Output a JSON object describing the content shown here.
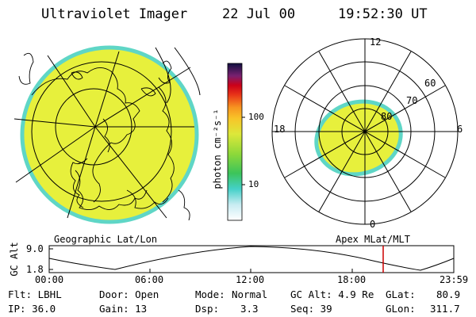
{
  "header": {
    "instrument": "Ultraviolet Imager",
    "date": "22 Jul 00",
    "time": "19:52:30 UT"
  },
  "colors": {
    "auroral_fill": "#e6f23a",
    "auroral_edge": "#55d3c5",
    "line": "#000000",
    "marker": "#cc0000"
  },
  "left_panel": {
    "label": "Geographic Lat/Lon"
  },
  "right_panel": {
    "label": "Apex MLat/MLT",
    "mlt_labels": [
      "12",
      "18",
      "6",
      "0"
    ],
    "mlat_labels": [
      "60",
      "70",
      "80"
    ]
  },
  "colorbar": {
    "unit_label": "photon cm⁻²s⁻¹",
    "ticks": [
      "100",
      "10"
    ],
    "scale": "log"
  },
  "altitude_plot": {
    "ylabel": "GC Alt",
    "yticks": [
      "9.0",
      "1.8"
    ],
    "xticks": [
      "00:00",
      "06:00",
      "12:00",
      "18:00",
      "23:59"
    ],
    "current_time_marker": "19:52:30"
  },
  "info": {
    "flt": "Flt: LBHL",
    "ip": "IP: 36.0",
    "door": "Door: Open",
    "gain": "Gain: 13",
    "mode_label": "Mode:",
    "mode_value": "Normal",
    "dsp_label": "Dsp:",
    "dsp_value": "3.3",
    "gcalt": "GC Alt: 4.9 Re",
    "seq": "Seq: 39",
    "glat_label": "GLat:",
    "glat_value": "80.9",
    "glon_label": "GLon:",
    "glon_value": "311.7"
  }
}
